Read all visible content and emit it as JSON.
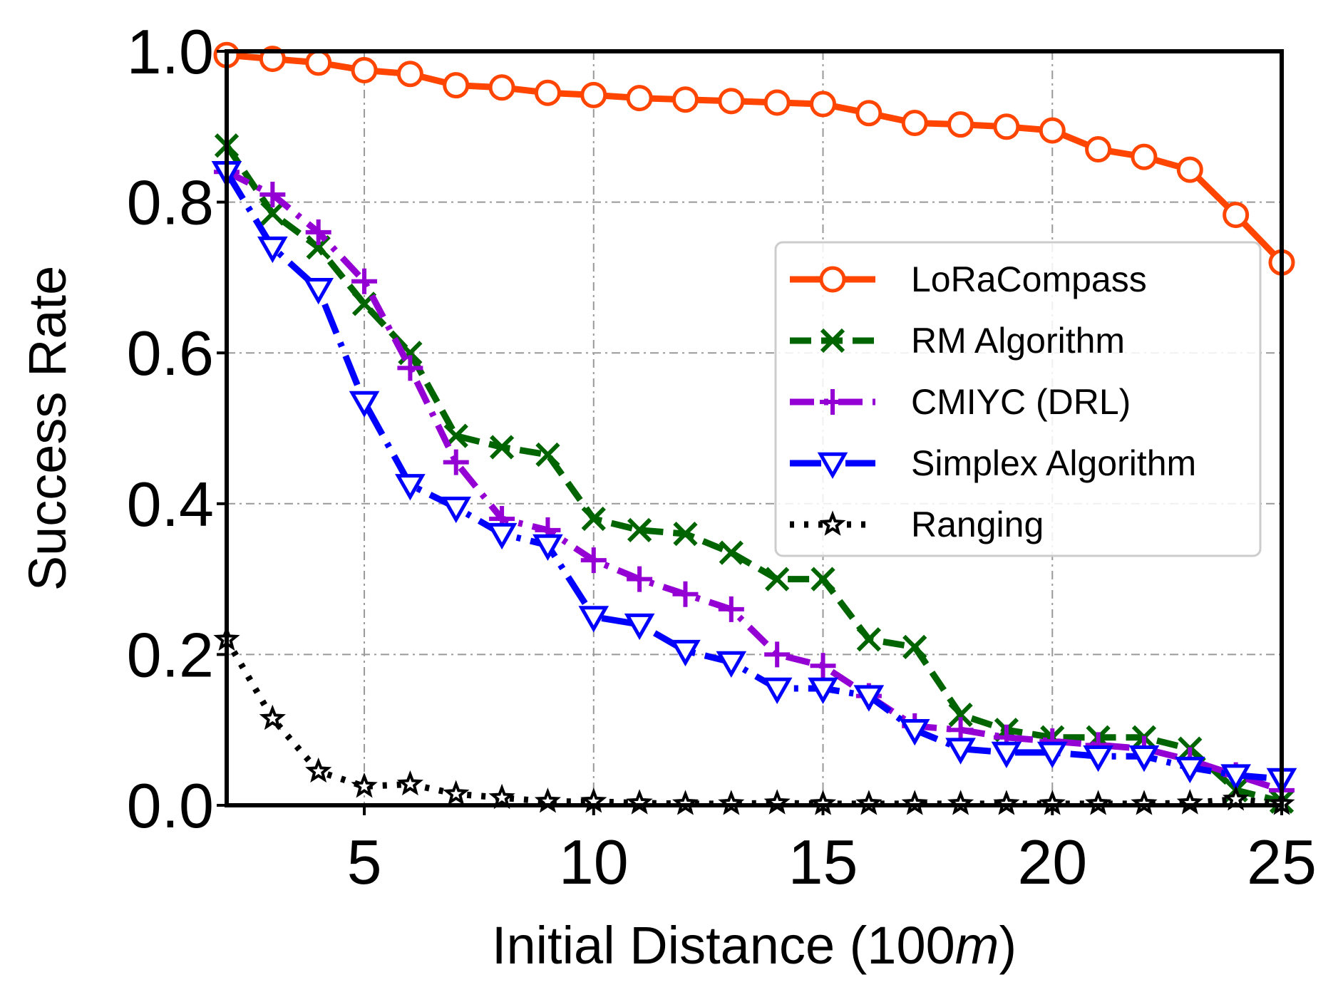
{
  "chart_data": {
    "type": "line",
    "title": "",
    "xlabel": "Initial Distance (100",
    "xlabel_italic": "m",
    "xlabel_close": ")",
    "ylabel": "Success Rate",
    "xlim": [
      2,
      25
    ],
    "ylim": [
      0,
      1
    ],
    "xticks": [
      5,
      10,
      15,
      20,
      25
    ],
    "xtick_labels": [
      "5",
      "10",
      "15",
      "20",
      "25"
    ],
    "yticks": [
      0,
      0.2,
      0.4,
      0.6,
      0.8,
      1.0
    ],
    "ytick_labels": [
      "0.0",
      "0.2",
      "0.4",
      "0.6",
      "0.8",
      "1.0"
    ],
    "grid": true,
    "legend_position": "center-right",
    "x": [
      2,
      3,
      4,
      5,
      6,
      7,
      8,
      9,
      10,
      11,
      12,
      13,
      14,
      15,
      16,
      17,
      18,
      19,
      20,
      21,
      22,
      23,
      24,
      25
    ],
    "series": [
      {
        "name": "LoRaCompass",
        "color": "#ff4500",
        "marker": "circle",
        "dash": "solid",
        "values": [
          0.995,
          0.99,
          0.985,
          0.975,
          0.97,
          0.955,
          0.952,
          0.945,
          0.942,
          0.938,
          0.936,
          0.934,
          0.932,
          0.93,
          0.918,
          0.905,
          0.903,
          0.9,
          0.895,
          0.87,
          0.86,
          0.843,
          0.783,
          0.72
        ]
      },
      {
        "name": "RM Algorithm",
        "color": "#006400",
        "marker": "x",
        "dash": "dashed",
        "values": [
          0.875,
          0.785,
          0.74,
          0.665,
          0.6,
          0.49,
          0.475,
          0.465,
          0.38,
          0.365,
          0.36,
          0.335,
          0.3,
          0.3,
          0.22,
          0.21,
          0.12,
          0.1,
          0.09,
          0.09,
          0.09,
          0.075,
          0.02,
          0.005
        ]
      },
      {
        "name": "CMIYC (DRL)",
        "color": "#9400d3",
        "marker": "plus",
        "dash": "dashdot",
        "values": [
          0.84,
          0.81,
          0.76,
          0.695,
          0.58,
          0.455,
          0.38,
          0.365,
          0.325,
          0.3,
          0.28,
          0.26,
          0.2,
          0.185,
          0.145,
          0.105,
          0.1,
          0.09,
          0.085,
          0.08,
          0.075,
          0.06,
          0.04,
          0.02
        ]
      },
      {
        "name": "Simplex Algorithm",
        "color": "#0000ff",
        "marker": "triangle-down",
        "dash": "dashdot-long",
        "values": [
          0.84,
          0.74,
          0.685,
          0.535,
          0.425,
          0.395,
          0.36,
          0.345,
          0.25,
          0.24,
          0.205,
          0.19,
          0.155,
          0.155,
          0.145,
          0.1,
          0.075,
          0.07,
          0.07,
          0.065,
          0.065,
          0.05,
          0.04,
          0.035
        ]
      },
      {
        "name": "Ranging",
        "color": "#000000",
        "marker": "star",
        "dash": "dotted",
        "values": [
          0.22,
          0.115,
          0.045,
          0.025,
          0.028,
          0.015,
          0.01,
          0.005,
          0.005,
          0.003,
          0.002,
          0.002,
          0.003,
          0.002,
          0.002,
          0.002,
          0.002,
          0.002,
          0.002,
          0.002,
          0.002,
          0.003,
          0.008,
          0.002
        ]
      }
    ]
  }
}
